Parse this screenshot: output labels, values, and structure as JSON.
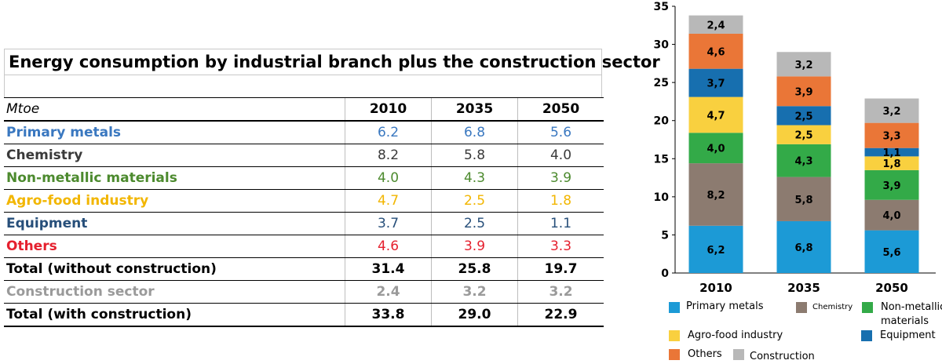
{
  "table": {
    "title": "Energy consumption by industrial branch plus the construction sector",
    "unit_label": "Mtoe",
    "years": [
      "2010",
      "2035",
      "2050"
    ],
    "rows": [
      {
        "label": "Primary metals",
        "values": [
          "6.2",
          "6.8",
          "5.6"
        ],
        "color": "#3a78c0",
        "bold": false
      },
      {
        "label": "Chemistry",
        "values": [
          "8.2",
          "5.8",
          "4.0"
        ],
        "color": "#3a3a3a",
        "bold": false
      },
      {
        "label": "Non-metallic materials",
        "values": [
          "4.0",
          "4.3",
          "3.9"
        ],
        "color": "#4c8a2e",
        "bold": false
      },
      {
        "label": "Agro-food industry",
        "values": [
          "4.7",
          "2.5",
          "1.8"
        ],
        "color": "#f2b600",
        "bold": false
      },
      {
        "label": "Equipment",
        "values": [
          "3.7",
          "2.5",
          "1.1"
        ],
        "color": "#274f7a",
        "bold": false
      },
      {
        "label": "Others",
        "values": [
          "4.6",
          "3.9",
          "3.3"
        ],
        "color": "#e5202e",
        "bold": false
      },
      {
        "label": "Total (without construction)",
        "values": [
          "31.4",
          "25.8",
          "19.7"
        ],
        "color": "#000000",
        "bold": true
      },
      {
        "label": "Construction sector",
        "values": [
          "2.4",
          "3.2",
          "3.2"
        ],
        "color": "#9a9a9a",
        "bold": true
      },
      {
        "label": "Total (with construction)",
        "values": [
          "33.8",
          "29.0",
          "22.9"
        ],
        "color": "#000000",
        "bold": true
      }
    ]
  },
  "chart_data": {
    "type": "bar",
    "stacked": true,
    "categories": [
      "2010",
      "2035",
      "2050"
    ],
    "ylim": [
      0,
      35
    ],
    "yticks": [
      "0",
      "5",
      "10",
      "15",
      "20",
      "25",
      "30",
      "35"
    ],
    "grid": false,
    "legend_position": "bottom",
    "series": [
      {
        "name": "Primary metals",
        "values": [
          6.2,
          6.8,
          5.6
        ],
        "labels": [
          "6,2",
          "6,8",
          "5,6"
        ],
        "color": "#1c9ad6"
      },
      {
        "name": "Chemistry",
        "values": [
          8.2,
          5.8,
          4.0
        ],
        "labels": [
          "8,2",
          "5,8",
          "4,0"
        ],
        "color": "#8c7b70"
      },
      {
        "name": "Non-metallic materials",
        "values": [
          4.0,
          4.3,
          3.9
        ],
        "labels": [
          "4,0",
          "4,3",
          "3,9"
        ],
        "color": "#33aa48"
      },
      {
        "name": "Agro-food industry",
        "values": [
          4.7,
          2.5,
          1.8
        ],
        "labels": [
          "4,7",
          "2,5",
          "1,8"
        ],
        "color": "#f9d03f"
      },
      {
        "name": "Equipment",
        "values": [
          3.7,
          2.5,
          1.1
        ],
        "labels": [
          "3,7",
          "2,5",
          "1,1"
        ],
        "color": "#176faf"
      },
      {
        "name": "Others",
        "values": [
          4.6,
          3.9,
          3.3
        ],
        "labels": [
          "4,6",
          "3,9",
          "3,3"
        ],
        "color": "#ea7637"
      },
      {
        "name": "Construction",
        "values": [
          2.4,
          3.2,
          3.2
        ],
        "labels": [
          "2,4",
          "3,2",
          "3,2"
        ],
        "color": "#b8b8b8"
      }
    ],
    "legend_labels": {
      "primary": "Primary metals",
      "chemistry": "Chemistry",
      "nonmetallic_line1": "Non-metallic",
      "nonmetallic_line2": "materials",
      "agro": "Agro-food industry",
      "equipment": "Equipment",
      "others": "Others",
      "construction": "Construction"
    }
  }
}
